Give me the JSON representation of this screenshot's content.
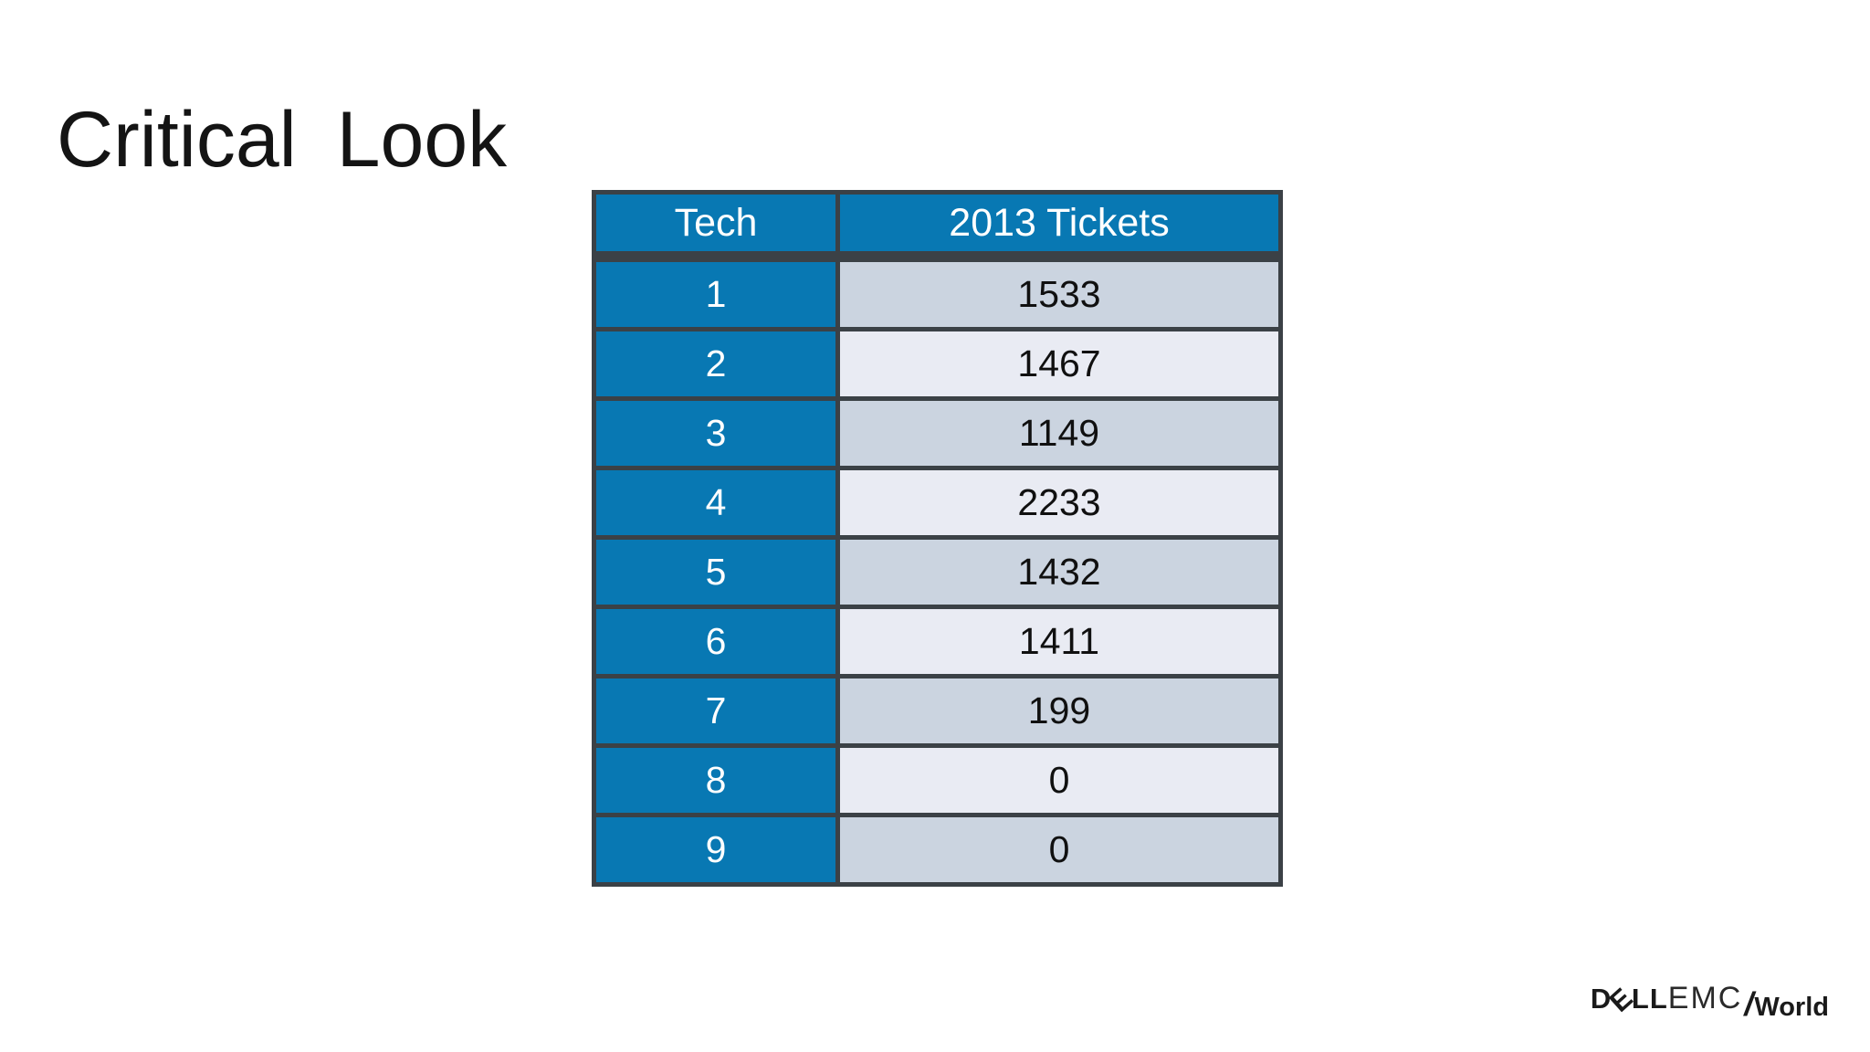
{
  "slide": {
    "title": "Critical Look",
    "background_color": "#ffffff",
    "title_color": "#141414"
  },
  "table": {
    "columns": [
      "Tech",
      "2013 Tickets"
    ],
    "rows": [
      {
        "tech": "1",
        "tickets": "1533"
      },
      {
        "tech": "2",
        "tickets": "1467"
      },
      {
        "tech": "3",
        "tickets": "1149"
      },
      {
        "tech": "4",
        "tickets": "2233"
      },
      {
        "tech": "5",
        "tickets": "1432"
      },
      {
        "tech": "6",
        "tickets": "1411"
      },
      {
        "tech": "7",
        "tickets": "199"
      },
      {
        "tech": "8",
        "tickets": "0"
      },
      {
        "tech": "9",
        "tickets": "0"
      }
    ],
    "colors": {
      "header_bg": "#0878B3",
      "header_text": "#ffffff",
      "tech_column_bg": "#0878B3",
      "odd_row_bg": "#CBD4E0",
      "even_row_bg": "#E9EBF3",
      "border": "#3B4146",
      "value_text": "#101010"
    }
  },
  "chart_data": {
    "type": "table",
    "title": "Critical Look",
    "categories": [
      "1",
      "2",
      "3",
      "4",
      "5",
      "6",
      "7",
      "8",
      "9"
    ],
    "values": [
      1533,
      1467,
      1149,
      2233,
      1432,
      1411,
      199,
      0,
      0
    ],
    "xlabel": "Tech",
    "ylabel": "2013 Tickets"
  },
  "logo": {
    "dell_d": "D",
    "dell_e": "E",
    "dell_ll": "LL",
    "emc": "EMC",
    "slash": "/",
    "world": "World"
  }
}
